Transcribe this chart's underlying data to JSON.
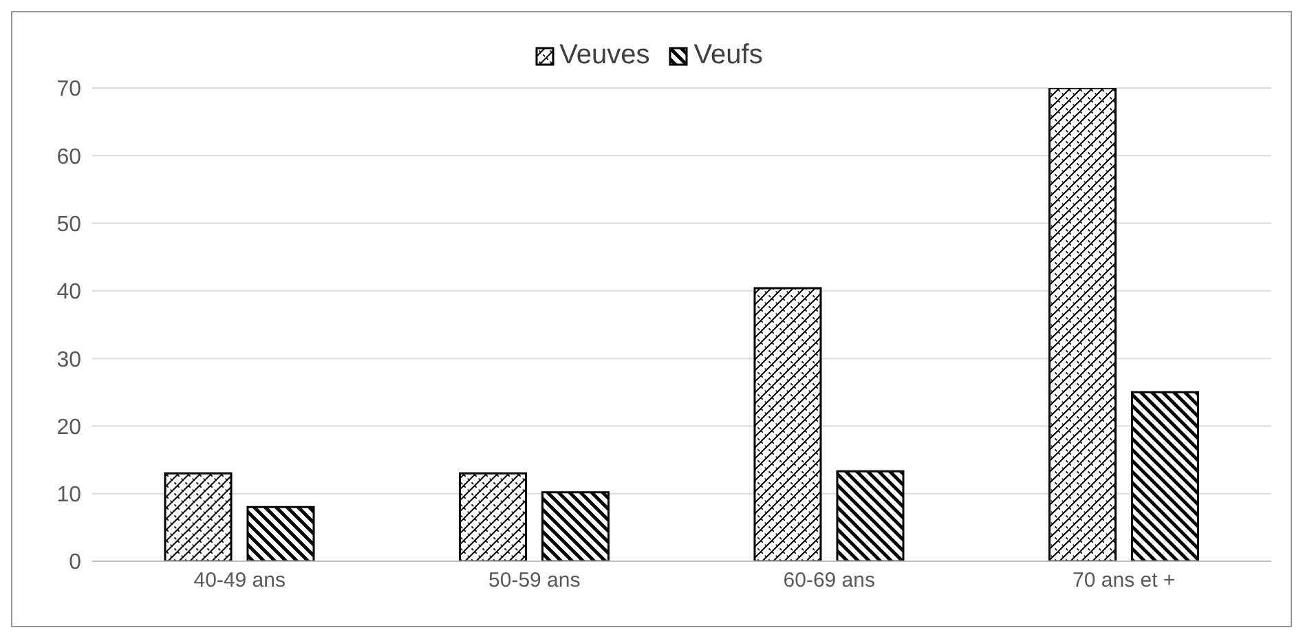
{
  "chart_data": {
    "type": "bar",
    "categories": [
      "40-49 ans",
      "50-59 ans",
      "60-69 ans",
      "70 ans et +"
    ],
    "series": [
      {
        "name": "Veuves",
        "color": "#000000",
        "values": [
          13,
          13,
          40.4,
          70
        ]
      },
      {
        "name": "Veufs",
        "color": "#000000",
        "values": [
          8,
          10.2,
          13.3,
          25
        ]
      }
    ],
    "ylim": [
      0,
      70
    ],
    "yticks": [
      0,
      10,
      20,
      30,
      40,
      50,
      60,
      70
    ],
    "grid": "y",
    "legend": "top"
  }
}
